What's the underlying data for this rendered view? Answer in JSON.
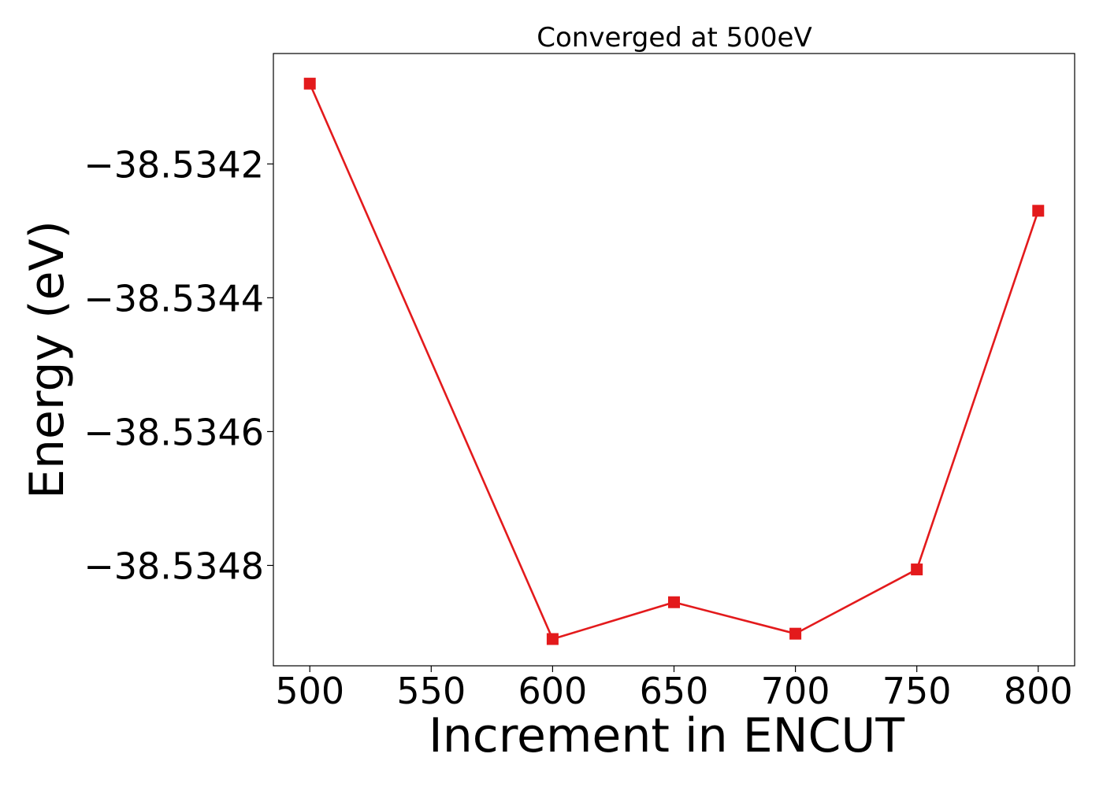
{
  "chart_data": {
    "type": "line",
    "title": "Converged at 500eV",
    "xlabel": "Increment in ENCUT",
    "ylabel": "Energy (eV)",
    "x": [
      500,
      600,
      650,
      700,
      750,
      800
    ],
    "series": [
      {
        "values": [
          -38.53408,
          -38.53491,
          -38.534855,
          -38.534902,
          -38.534806,
          -38.53427
        ],
        "color": "#e31a1c",
        "marker": "square"
      }
    ],
    "xlim": [
      485,
      815
    ],
    "ylim": [
      -38.53495,
      -38.534035
    ],
    "xticks": [
      500,
      550,
      600,
      650,
      700,
      750,
      800
    ],
    "yticks": [
      -38.5342,
      -38.5344,
      -38.5346,
      -38.5348
    ],
    "ytick_labels": [
      "−38.5342",
      "−38.5344",
      "−38.5346",
      "−38.5348"
    ],
    "grid": false,
    "legend": "none"
  }
}
